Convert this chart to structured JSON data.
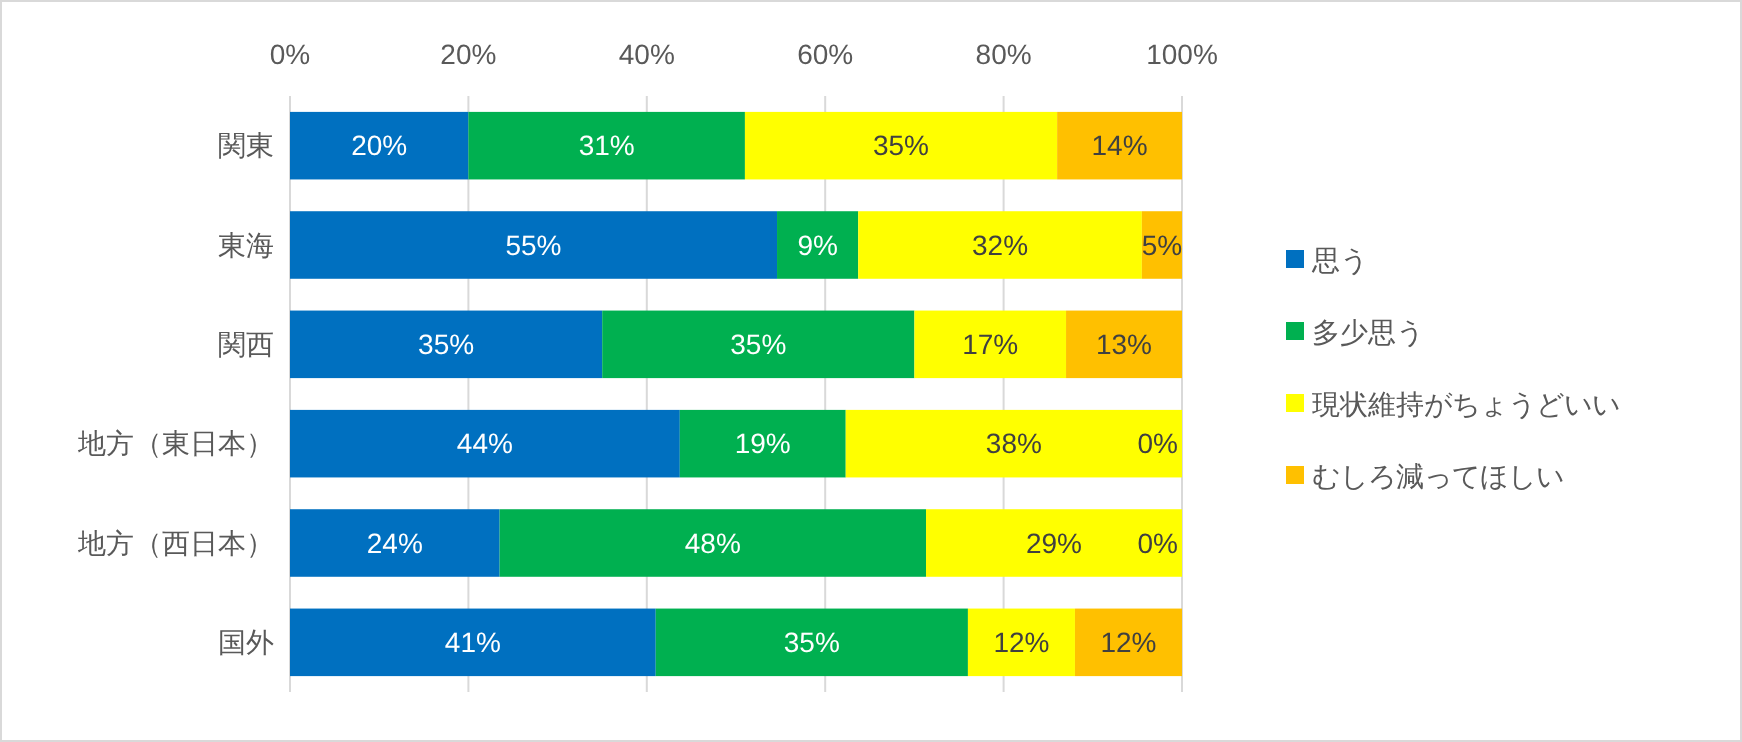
{
  "chart_data": {
    "type": "bar",
    "orientation": "horizontal",
    "stacked": true,
    "categories": [
      "関東",
      "東海",
      "関西",
      "地方（東日本）",
      "地方（西日本）",
      "国外"
    ],
    "series": [
      {
        "name": "思う",
        "color": "#0070c0",
        "values": [
          20,
          54.6,
          35,
          43.7,
          23.5,
          41
        ],
        "value_labels": [
          "20%",
          "55%",
          "35%",
          "44%",
          "24%",
          "41%"
        ]
      },
      {
        "name": "多少思う",
        "color": "#00b050",
        "values": [
          31,
          9.1,
          35,
          18.6,
          47.8,
          35
        ],
        "value_labels": [
          "31%",
          "9%",
          "35%",
          "19%",
          "48%",
          "35%"
        ]
      },
      {
        "name": "現状維持がちょうどいい",
        "color": "#ffff00",
        "values": [
          35,
          31.8,
          17,
          37.7,
          28.7,
          12
        ],
        "value_labels": [
          "35%",
          "32%",
          "17%",
          "38%",
          "29%",
          "12%"
        ]
      },
      {
        "name": "むしろ減ってほしい",
        "color": "#ffc000",
        "values": [
          14,
          4.5,
          13,
          0,
          0,
          12
        ],
        "value_labels": [
          "14%",
          "5%",
          "13%",
          "0%",
          "0%",
          "12%"
        ]
      }
    ],
    "xlim": [
      0,
      100
    ],
    "xticks": [
      {
        "value": 0,
        "label": "0%"
      },
      {
        "value": 20,
        "label": "20%"
      },
      {
        "value": 40,
        "label": "40%"
      },
      {
        "value": 60,
        "label": "60%"
      },
      {
        "value": 80,
        "label": "80%"
      },
      {
        "value": 100,
        "label": "100%"
      }
    ],
    "grid": "x",
    "legend": "right"
  }
}
